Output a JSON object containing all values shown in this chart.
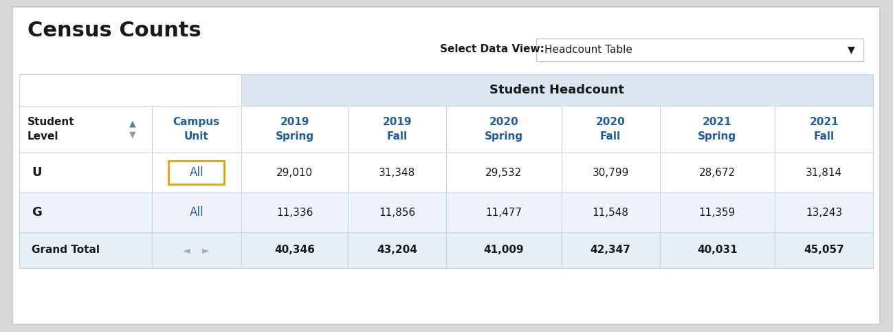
{
  "title": "Census Counts",
  "dropdown_label": "Select Data View:",
  "dropdown_value": "Headcount Table",
  "table_header": "Student Headcount",
  "col_headers": [
    "Student\nLevel",
    "Campus\nUnit",
    "2019\nSpring",
    "2019\nFall",
    "2020\nSpring",
    "2020\nFall",
    "2021\nSpring",
    "2021\nFall"
  ],
  "rows": [
    {
      "level": "U",
      "unit": "All",
      "values": [
        "29,010",
        "31,348",
        "29,532",
        "30,799",
        "28,672",
        "31,814"
      ],
      "unit_highlighted": true
    },
    {
      "level": "G",
      "unit": "All",
      "values": [
        "11,336",
        "11,856",
        "11,477",
        "11,548",
        "11,359",
        "13,243"
      ],
      "unit_highlighted": false
    }
  ],
  "grand_total": [
    "40,346",
    "43,204",
    "41,009",
    "42,347",
    "40,031",
    "45,057"
  ],
  "outer_bg": "#d8d8d8",
  "inner_bg": "#ffffff",
  "table_header_bg": "#dce6f1",
  "col_header_bg": "#ffffff",
  "row0_bg": "#ffffff",
  "row1_bg": "#eef3f9",
  "grand_total_bg": "#e8eef5",
  "blue_text": "#1f5da0",
  "black_text": "#1a1a1a",
  "border_color": "#c5d5e8",
  "highlight_box_color": "#e6a817",
  "dropdown_border": "#c8c8c8",
  "arrow_color": "#999999"
}
